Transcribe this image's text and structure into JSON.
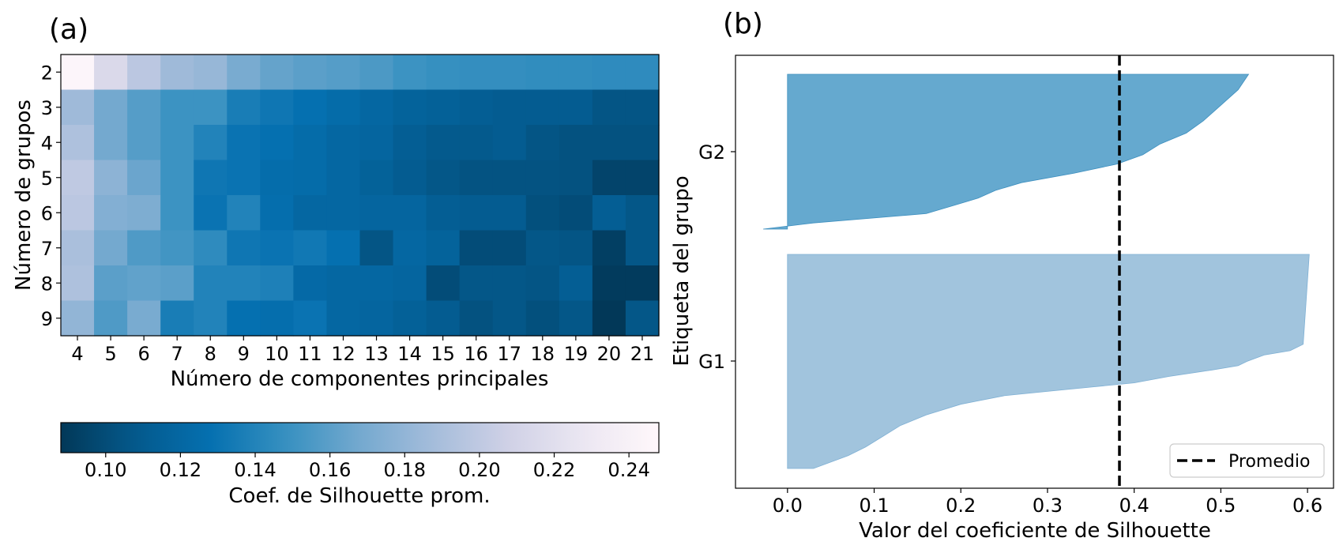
{
  "panels": {
    "a_label": "(a)",
    "b_label": "(b)"
  },
  "chart_data": [
    {
      "type": "heatmap",
      "title": "",
      "xlabel": "Número de componentes principales",
      "ylabel": "Número de grupos",
      "x_ticks": [
        "4",
        "5",
        "6",
        "7",
        "8",
        "9",
        "10",
        "11",
        "12",
        "13",
        "14",
        "15",
        "16",
        "17",
        "18",
        "19",
        "20",
        "21"
      ],
      "y_ticks": [
        "2",
        "3",
        "4",
        "5",
        "6",
        "7",
        "8",
        "9"
      ],
      "values": [
        [
          0.245,
          0.215,
          0.198,
          0.185,
          0.182,
          0.17,
          0.163,
          0.16,
          0.158,
          0.155,
          0.15,
          0.148,
          0.147,
          0.147,
          0.146,
          0.146,
          0.145,
          0.145
        ],
        [
          0.185,
          0.168,
          0.158,
          0.15,
          0.15,
          0.136,
          0.132,
          0.128,
          0.124,
          0.12,
          0.116,
          0.114,
          0.112,
          0.11,
          0.11,
          0.11,
          0.105,
          0.105
        ],
        [
          0.192,
          0.168,
          0.158,
          0.15,
          0.14,
          0.13,
          0.128,
          0.124,
          0.12,
          0.118,
          0.112,
          0.108,
          0.108,
          0.11,
          0.105,
          0.103,
          0.103,
          0.103
        ],
        [
          0.2,
          0.178,
          0.165,
          0.15,
          0.132,
          0.13,
          0.125,
          0.124,
          0.12,
          0.115,
          0.11,
          0.106,
          0.104,
          0.104,
          0.104,
          0.103,
          0.095,
          0.095
        ],
        [
          0.198,
          0.174,
          0.172,
          0.15,
          0.13,
          0.14,
          0.126,
          0.12,
          0.12,
          0.118,
          0.118,
          0.112,
          0.11,
          0.11,
          0.102,
          0.1,
          0.112,
          0.106
        ],
        [
          0.19,
          0.168,
          0.156,
          0.152,
          0.145,
          0.132,
          0.13,
          0.133,
          0.128,
          0.105,
          0.12,
          0.116,
          0.1,
          0.1,
          0.106,
          0.105,
          0.092,
          0.106
        ],
        [
          0.192,
          0.16,
          0.162,
          0.16,
          0.14,
          0.14,
          0.138,
          0.122,
          0.12,
          0.12,
          0.118,
          0.1,
          0.106,
          0.106,
          0.105,
          0.112,
          0.09,
          0.09
        ],
        [
          0.18,
          0.156,
          0.17,
          0.136,
          0.14,
          0.128,
          0.126,
          0.13,
          0.12,
          0.118,
          0.114,
          0.11,
          0.103,
          0.106,
          0.102,
          0.106,
          0.088,
          0.106
        ]
      ],
      "colorbar": {
        "label": "Coef. de Silhouette prom.",
        "range": [
          0.088,
          0.248
        ],
        "ticks": [
          "0.10",
          "0.12",
          "0.14",
          "0.16",
          "0.18",
          "0.20",
          "0.22",
          "0.24"
        ],
        "colormap": "PuBu_r",
        "orientation": "horizontal",
        "placement": "below"
      }
    },
    {
      "type": "area",
      "title": "",
      "xlabel": "Valor del coeficiente de Silhouette",
      "ylabel": "Etiqueta del grupo",
      "xlim": [
        -0.06,
        0.63
      ],
      "x_ticks": [
        "0.0",
        "0.1",
        "0.2",
        "0.3",
        "0.4",
        "0.5",
        "0.6"
      ],
      "y_tick_labels": [
        "G1",
        "G2"
      ],
      "groups": [
        {
          "label": "G1",
          "color": "#a1c4dd",
          "silhouette_profile": [
            [
              0.0,
              0.03
            ],
            [
              0.06,
              0.07
            ],
            [
              0.1,
              0.09
            ],
            [
              0.15,
              0.11
            ],
            [
              0.2,
              0.13
            ],
            [
              0.25,
              0.16
            ],
            [
              0.3,
              0.2
            ],
            [
              0.34,
              0.25
            ],
            [
              0.36,
              0.3
            ],
            [
              0.38,
              0.35
            ],
            [
              0.4,
              0.4
            ],
            [
              0.43,
              0.44
            ],
            [
              0.46,
              0.49
            ],
            [
              0.48,
              0.52
            ],
            [
              0.5,
              0.53
            ],
            [
              0.53,
              0.55
            ],
            [
              0.55,
              0.58
            ],
            [
              0.58,
              0.595
            ],
            [
              1.0,
              0.602
            ]
          ]
        },
        {
          "label": "G2",
          "color": "#65a9cf",
          "silhouette_profile": [
            [
              0.0,
              -0.028
            ],
            [
              0.04,
              0.03
            ],
            [
              0.1,
              0.16
            ],
            [
              0.15,
              0.19
            ],
            [
              0.2,
              0.22
            ],
            [
              0.25,
              0.24
            ],
            [
              0.3,
              0.27
            ],
            [
              0.36,
              0.33
            ],
            [
              0.42,
              0.38
            ],
            [
              0.48,
              0.41
            ],
            [
              0.55,
              0.43
            ],
            [
              0.62,
              0.46
            ],
            [
              0.7,
              0.48
            ],
            [
              0.8,
              0.5
            ],
            [
              0.9,
              0.52
            ],
            [
              1.0,
              0.532
            ]
          ]
        }
      ],
      "average_line": {
        "value": 0.383,
        "style": "dashed",
        "color": "#000000"
      },
      "legend": {
        "entries": [
          "Promedio"
        ],
        "placement": "bottom-right"
      }
    }
  ]
}
